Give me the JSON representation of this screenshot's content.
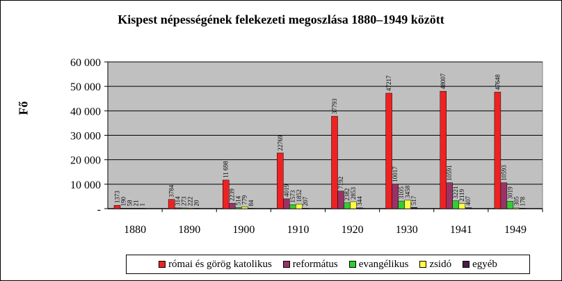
{
  "chart_data": {
    "type": "bar",
    "title": "Kispest népességének felekezeti megoszlása 1880–1949 között",
    "ylabel": "Fő",
    "xlabel": "",
    "ylim": [
      0,
      60000
    ],
    "yticks": [
      "60 000",
      "50 000",
      "40 000",
      "30 000",
      "20 000",
      "10 000",
      "-"
    ],
    "ytick_values": [
      60000,
      50000,
      40000,
      30000,
      20000,
      10000,
      0
    ],
    "categories": [
      "1880",
      "1890",
      "1900",
      "1910",
      "1920",
      "1930",
      "1941",
      "1949"
    ],
    "legend_position": "bottom",
    "grid": true,
    "plot_background": "#c0c0c0",
    "series": [
      {
        "name": "római és görög katolikus",
        "color": "#ee2222",
        "values": [
          1373,
          3784,
          11698,
          22769,
          37793,
          47217,
          48007,
          47648
        ],
        "labels": [
          "1373",
          "3784",
          "11 698",
          "22769",
          "37793",
          "47217",
          "48007",
          "47648"
        ]
      },
      {
        "name": "református",
        "color": "#993366",
        "values": [
          190,
          314,
          2239,
          4019,
          7192,
          10017,
          10591,
          10593
        ],
        "labels": [
          "190",
          "314",
          "2239",
          "4019",
          "7192",
          "10017",
          "10591",
          "10593"
        ]
      },
      {
        "name": "evangélikus",
        "color": "#33cc33",
        "values": [
          58,
          273,
          514,
          1573,
          2382,
          3105,
          3221,
          3019
        ],
        "labels": [
          "58",
          "273",
          "514",
          "1573",
          "2382",
          "3105",
          "3221",
          "3019"
        ]
      },
      {
        "name": "zsidó",
        "color": "#ffff44",
        "values": [
          21,
          222,
          779,
          1852,
          2853,
          3458,
          2119,
          305
        ],
        "labels": [
          "21",
          "222",
          "779",
          "1852",
          "2853",
          "3458",
          "2119",
          "305"
        ]
      },
      {
        "name": "egyéb",
        "color": "#4b1a4b",
        "values": [
          1,
          20,
          84,
          207,
          344,
          517,
          407,
          178
        ],
        "labels": [
          "1",
          "20",
          "84",
          "207",
          "344",
          "517",
          "407",
          "178"
        ]
      }
    ]
  }
}
